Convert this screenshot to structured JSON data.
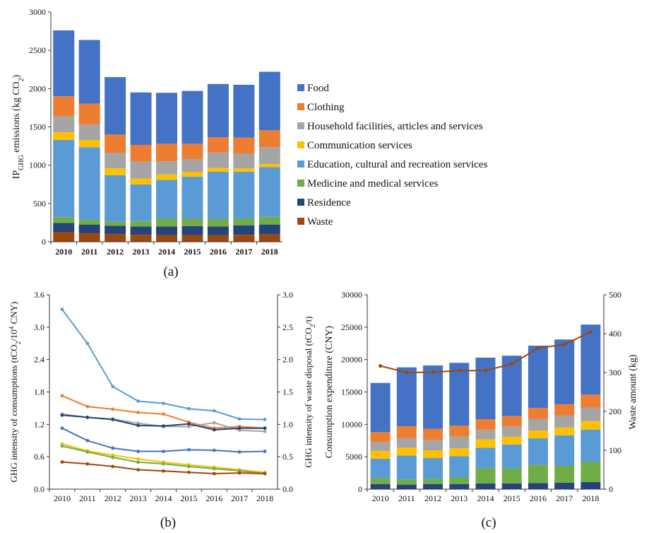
{
  "panel_labels": {
    "a": "(a)",
    "b": "(b)",
    "c": "(c)"
  },
  "colors": {
    "Food": "#4472C4",
    "Clothing": "#ED7D31",
    "Household facilities, articles and services": "#A5A5A5",
    "Communication services": "#FFC000",
    "Education, cultural and recreation services": "#5B9BD5",
    "Medicine and medical services": "#70AD47",
    "Residence": "#264478",
    "Waste": "#9E480E"
  },
  "chart_data": [
    {
      "id": "a",
      "type": "bar",
      "stacked": true,
      "ylabel": "IPGHG emissions (kg CO2)",
      "ylabel_parts": {
        "base": "IP",
        "sub1": "GHG",
        "mid": " emissions (kg CO",
        "sub2": "2",
        "end": ")"
      },
      "ylim": [
        0,
        3000
      ],
      "yticks": [
        0,
        500,
        1000,
        1500,
        2000,
        2500,
        3000
      ],
      "categories": [
        "2010",
        "2011",
        "2012",
        "2013",
        "2014",
        "2015",
        "2016",
        "2017",
        "2018"
      ],
      "legend_position": "right",
      "series": [
        {
          "name": "Waste",
          "values": [
            125,
            110,
            100,
            90,
            85,
            85,
            85,
            90,
            95
          ]
        },
        {
          "name": "Residence",
          "values": [
            120,
            115,
            110,
            110,
            115,
            120,
            115,
            125,
            130
          ]
        },
        {
          "name": "Medicine and medical services",
          "values": [
            75,
            60,
            50,
            70,
            100,
            95,
            95,
            90,
            100
          ]
        },
        {
          "name": "Education, cultural and recreation services",
          "values": [
            1010,
            950,
            610,
            480,
            510,
            550,
            620,
            610,
            650
          ]
        },
        {
          "name": "Communication services",
          "values": [
            100,
            95,
            90,
            75,
            70,
            60,
            50,
            45,
            40
          ]
        },
        {
          "name": "Household facilities, articles and services",
          "values": [
            210,
            200,
            200,
            220,
            170,
            170,
            200,
            190,
            220
          ]
        },
        {
          "name": "Clothing",
          "values": [
            260,
            275,
            240,
            220,
            230,
            200,
            200,
            210,
            220
          ]
        },
        {
          "name": "Food",
          "values": [
            860,
            830,
            750,
            685,
            665,
            690,
            695,
            690,
            765
          ]
        }
      ]
    },
    {
      "id": "b",
      "type": "line",
      "x": [
        "2010",
        "2011",
        "2012",
        "2013",
        "2014",
        "2015",
        "2016",
        "2017",
        "2018"
      ],
      "ylabel_left": "GHG intensity of consumptions (tCO2/10⁴ CNY)",
      "ylabel_left_parts": {
        "base": "GHG intensity of consumptions (tCO",
        "sub": "2",
        "mid": "/10",
        "sup": "4",
        "end": " CNY)"
      },
      "ylabel_right": "GHG intensity of waste disposal (tCO2/t)",
      "ylabel_right_parts": {
        "base": "GHG intensity of waste disposal (tCO",
        "sub": "2",
        "end": "/t)"
      },
      "ylim_left": [
        0,
        3.6
      ],
      "yticks_left": [
        "0.0",
        "0.6",
        "1.2",
        "1.8",
        "2.4",
        "3.0",
        "3.6"
      ],
      "ylim_right": [
        0,
        3.0
      ],
      "yticks_right": [
        "0.0",
        "0.5",
        "1.0",
        "1.5",
        "2.0",
        "2.5",
        "3.0"
      ],
      "series": [
        {
          "category": "Education, cultural and recreation services",
          "values": [
            3.33,
            2.7,
            1.9,
            1.63,
            1.59,
            1.49,
            1.45,
            1.3,
            1.29
          ]
        },
        {
          "category": "Clothing",
          "values": [
            1.73,
            1.53,
            1.48,
            1.42,
            1.39,
            1.24,
            1.13,
            1.16,
            1.13
          ]
        },
        {
          "category": "Household facilities, articles and services",
          "values": [
            1.39,
            1.33,
            1.3,
            1.22,
            1.16,
            1.16,
            1.23,
            1.09,
            1.07
          ]
        },
        {
          "category": "Residence",
          "values": [
            1.37,
            1.33,
            1.29,
            1.18,
            1.17,
            1.21,
            1.1,
            1.13,
            1.13
          ]
        },
        {
          "category": "Food",
          "values": [
            1.13,
            0.9,
            0.76,
            0.7,
            0.7,
            0.73,
            0.72,
            0.69,
            0.7
          ]
        },
        {
          "category": "Communication services",
          "values": [
            0.84,
            0.71,
            0.63,
            0.56,
            0.5,
            0.45,
            0.41,
            0.36,
            0.31
          ]
        },
        {
          "category": "Medicine and medical services",
          "values": [
            0.8,
            0.69,
            0.59,
            0.5,
            0.47,
            0.42,
            0.38,
            0.34,
            0.29
          ]
        },
        {
          "category": "Waste",
          "axis": "right",
          "values": [
            0.42,
            0.39,
            0.35,
            0.3,
            0.28,
            0.26,
            0.24,
            0.25,
            0.24
          ]
        }
      ]
    },
    {
      "id": "c",
      "type": "bar",
      "stacked": true,
      "ylabel_left": "Consumption expenditure (CNY)",
      "ylabel_right": "Waste amount (kg)",
      "ylim_left": [
        0,
        30000
      ],
      "yticks_left": [
        0,
        5000,
        10000,
        15000,
        20000,
        25000,
        30000
      ],
      "ylim_right": [
        0,
        500
      ],
      "yticks_right": [
        0,
        100,
        200,
        300,
        400,
        500
      ],
      "categories": [
        "2010",
        "2011",
        "2012",
        "2013",
        "2014",
        "2015",
        "2016",
        "2017",
        "2018"
      ],
      "series": [
        {
          "name": "Residence",
          "values": [
            800,
            700,
            800,
            800,
            900,
            900,
            950,
            1000,
            1100
          ]
        },
        {
          "name": "Medicine and medical services",
          "values": [
            900,
            800,
            800,
            1000,
            2300,
            2300,
            2800,
            2600,
            3100
          ]
        },
        {
          "name": "Education, cultural and recreation services",
          "values": [
            3000,
            3700,
            3200,
            3300,
            3200,
            3700,
            4100,
            4700,
            5000
          ]
        },
        {
          "name": "Communication services",
          "values": [
            1200,
            1200,
            1200,
            1200,
            1300,
            1200,
            1200,
            1200,
            1300
          ]
        },
        {
          "name": "Household facilities, articles and services",
          "values": [
            1400,
            1500,
            1600,
            1800,
            1500,
            1600,
            1800,
            1900,
            2100
          ]
        },
        {
          "name": "Clothing",
          "values": [
            1500,
            1800,
            1700,
            1700,
            1600,
            1600,
            1700,
            1700,
            2000
          ]
        },
        {
          "name": "Food",
          "values": [
            7600,
            9100,
            9800,
            9700,
            9500,
            9300,
            9600,
            10000,
            10800
          ]
        }
      ],
      "line": {
        "name": "Waste",
        "axis": "right",
        "values": [
          317,
          300,
          301,
          305,
          305,
          322,
          363,
          372,
          405
        ]
      }
    }
  ]
}
